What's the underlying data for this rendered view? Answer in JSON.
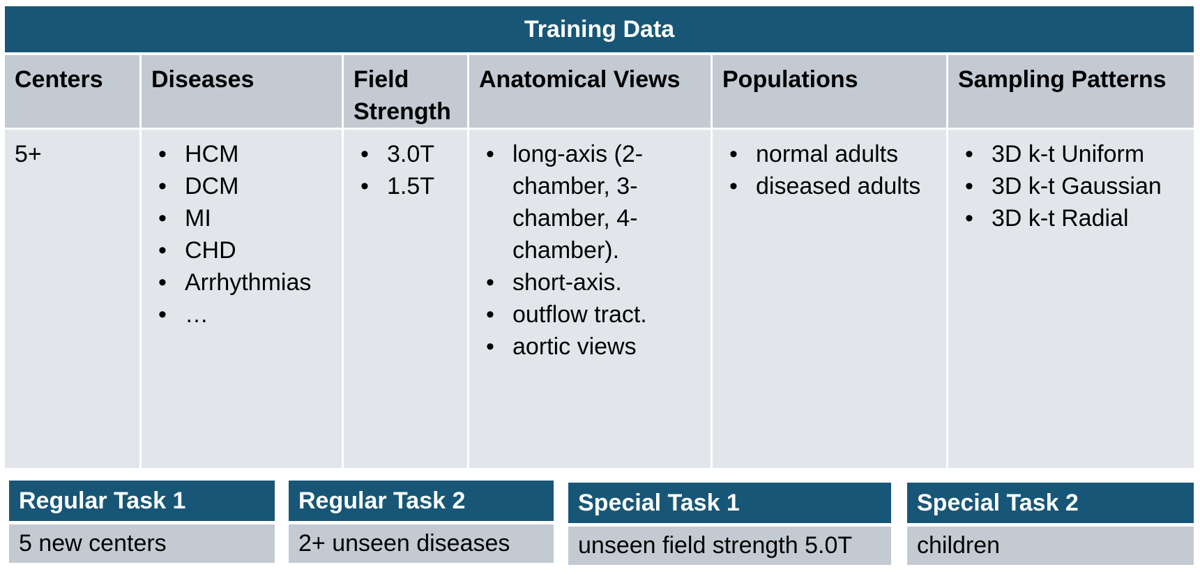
{
  "title": "Training Data",
  "columns": [
    {
      "header": "Centers",
      "value": "5+"
    },
    {
      "header": "Diseases",
      "items": [
        "HCM",
        "DCM",
        "MI",
        "CHD",
        "Arrhythmias",
        "…"
      ]
    },
    {
      "header": "Field Strength",
      "items": [
        "3.0T",
        "1.5T"
      ]
    },
    {
      "header": "Anatomical Views",
      "items": [
        "long-axis (2-chamber, 3-chamber, 4-chamber).",
        "short-axis.",
        "outflow tract.",
        "aortic views"
      ]
    },
    {
      "header": "Populations",
      "items": [
        "normal adults",
        "diseased adults"
      ]
    },
    {
      "header": "Sampling Patterns",
      "items": [
        "3D k-t Uniform",
        "3D k-t Gaussian",
        "3D k-t Radial"
      ]
    }
  ],
  "bullet": "•",
  "tasks": [
    {
      "title": "Regular Task 1",
      "desc": "5 new centers"
    },
    {
      "title": "Regular Task 2",
      "desc": "2+ unseen diseases"
    },
    {
      "title": "Special Task 1",
      "desc": "unseen field strength 5.0T"
    },
    {
      "title": "Special Task 2",
      "desc": "children"
    }
  ],
  "colors": {
    "header_dark": "#175676",
    "header_light": "#c3cad2",
    "body": "#e2e6ea"
  }
}
